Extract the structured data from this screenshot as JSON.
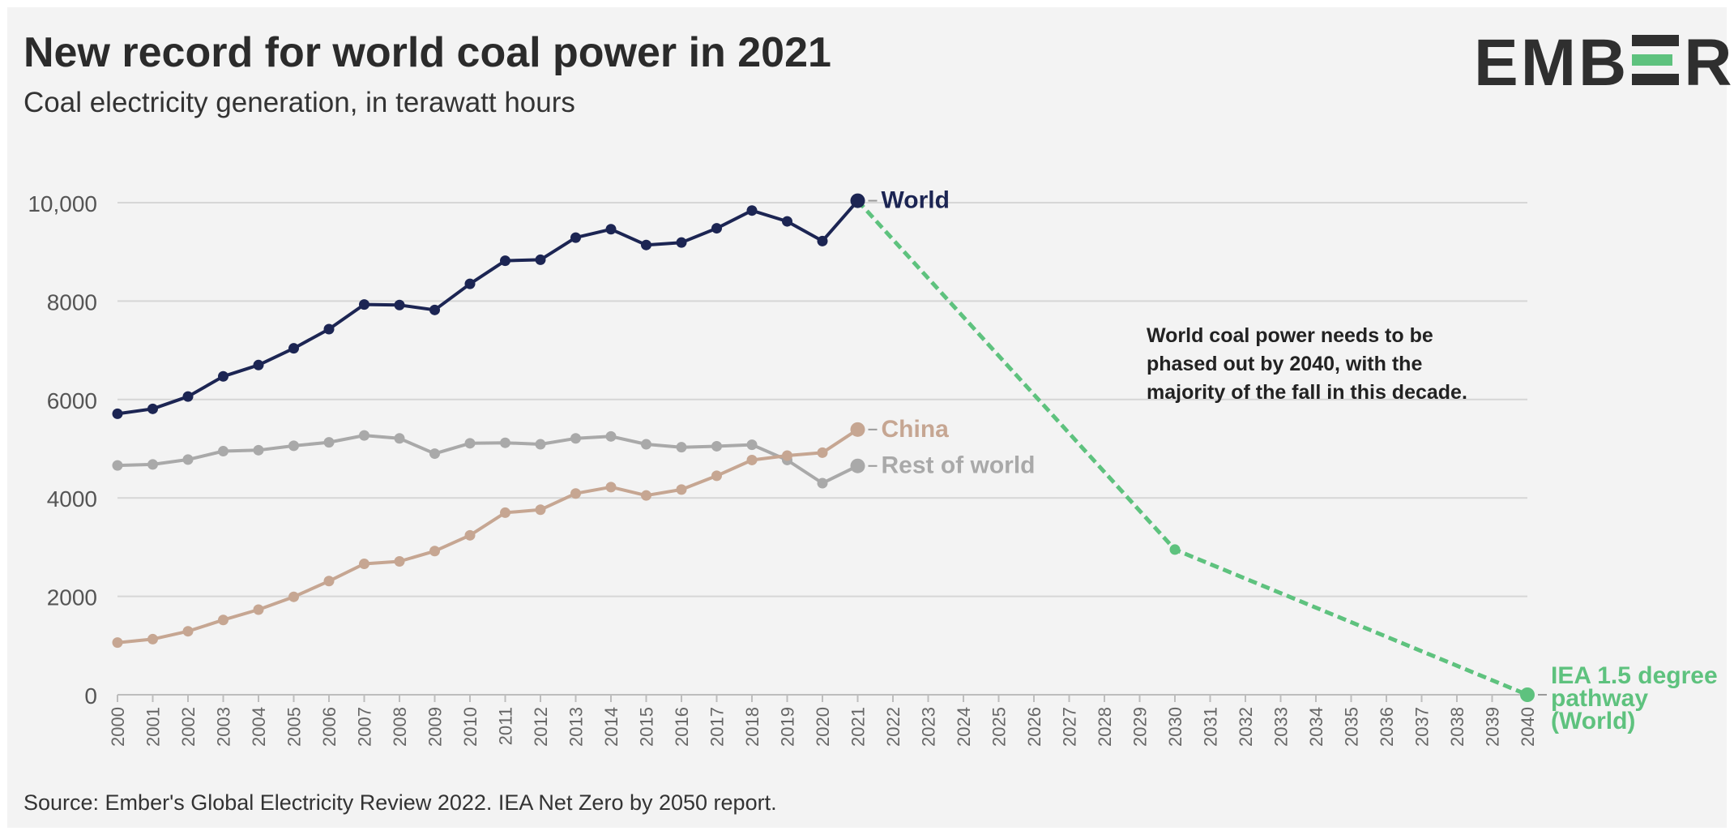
{
  "header": {
    "title": "New record for world coal power in 2021",
    "subtitle": "Coal electricity generation, in terawatt hours",
    "logo_text": "EMBER"
  },
  "footer": {
    "source": "Source: Ember's Global Electricity Review 2022. IEA Net Zero by 2050 report."
  },
  "colors": {
    "world": "#1c2553",
    "china": "#c6a692",
    "rest_of_world": "#a9a9a9",
    "iea_pathway": "#5ec27e",
    "grid": "#d6d6d6",
    "axis_text": "#555555",
    "annotation": "#222222"
  },
  "chart_data": {
    "type": "line",
    "title": "New record for world coal power in 2021",
    "subtitle": "Coal electricity generation, in terawatt hours",
    "xlabel": "",
    "ylabel": "",
    "ylim": [
      0,
      10000
    ],
    "xlim": [
      2000,
      2040
    ],
    "grid": true,
    "y_ticks": [
      "0",
      "2000",
      "4000",
      "6000",
      "8000",
      "10,000"
    ],
    "y_tick_values": [
      0,
      2000,
      4000,
      6000,
      8000,
      10000
    ],
    "x_ticks": [
      "2000",
      "2001",
      "2002",
      "2003",
      "2004",
      "2005",
      "2006",
      "2007",
      "2008",
      "2009",
      "2010",
      "2011",
      "2012",
      "2013",
      "2014",
      "2015",
      "2016",
      "2017",
      "2018",
      "2019",
      "2020",
      "2021",
      "2022",
      "2023",
      "2024",
      "2025",
      "2026",
      "2027",
      "2028",
      "2029",
      "2030",
      "2031",
      "2032",
      "2033",
      "2034",
      "2035",
      "2036",
      "2037",
      "2038",
      "2039",
      "2040"
    ],
    "series": [
      {
        "name": "World",
        "key": "world",
        "x": [
          2000,
          2001,
          2002,
          2003,
          2004,
          2005,
          2006,
          2007,
          2008,
          2009,
          2010,
          2011,
          2012,
          2013,
          2014,
          2015,
          2016,
          2017,
          2018,
          2019,
          2020,
          2021
        ],
        "values": [
          5710,
          5810,
          6060,
          6470,
          6700,
          7040,
          7430,
          7930,
          7920,
          7820,
          8350,
          8820,
          8840,
          9290,
          9460,
          9140,
          9190,
          9480,
          9840,
          9620,
          9220,
          10040
        ]
      },
      {
        "name": "China",
        "key": "china",
        "x": [
          2000,
          2001,
          2002,
          2003,
          2004,
          2005,
          2006,
          2007,
          2008,
          2009,
          2010,
          2011,
          2012,
          2013,
          2014,
          2015,
          2016,
          2017,
          2018,
          2019,
          2020,
          2021
        ],
        "values": [
          1060,
          1130,
          1290,
          1520,
          1730,
          1990,
          2310,
          2660,
          2710,
          2920,
          3240,
          3700,
          3760,
          4090,
          4220,
          4050,
          4170,
          4450,
          4770,
          4860,
          4920,
          5390
        ]
      },
      {
        "name": "Rest of world",
        "key": "rest_of_world",
        "x": [
          2000,
          2001,
          2002,
          2003,
          2004,
          2005,
          2006,
          2007,
          2008,
          2009,
          2010,
          2011,
          2012,
          2013,
          2014,
          2015,
          2016,
          2017,
          2018,
          2019,
          2020,
          2021
        ],
        "values": [
          4660,
          4680,
          4780,
          4950,
          4970,
          5060,
          5130,
          5270,
          5210,
          4900,
          5110,
          5120,
          5090,
          5210,
          5250,
          5090,
          5030,
          5050,
          5080,
          4770,
          4300,
          4650
        ]
      },
      {
        "name": "IEA 1.5 degree pathway (World)",
        "key": "iea_pathway",
        "x": [
          2021,
          2030,
          2040
        ],
        "values": [
          10040,
          2950,
          0
        ]
      }
    ],
    "series_labels": {
      "world": "World",
      "china": "China",
      "rest_of_world": "Rest of world",
      "iea_pathway": [
        "IEA 1.5 degree",
        "pathway",
        "(World)"
      ]
    },
    "annotation": [
      "World coal power needs to be",
      "phased out by 2040, with the",
      "majority of the fall in this decade."
    ]
  }
}
